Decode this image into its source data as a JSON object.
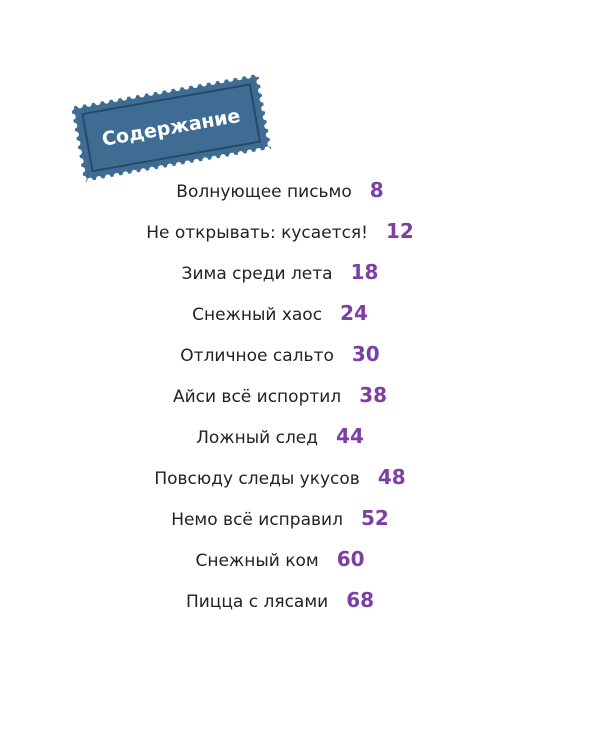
{
  "header": {
    "title": "Содержание"
  },
  "toc": {
    "entries": [
      {
        "title": "Волнующее письмо",
        "page": "8"
      },
      {
        "title": "Не открывать: кусается!",
        "page": "12"
      },
      {
        "title": "Зима среди лета",
        "page": "18"
      },
      {
        "title": "Снежный хаос",
        "page": "24"
      },
      {
        "title": "Отличное сальто",
        "page": "30"
      },
      {
        "title": "Айси всё испортил",
        "page": "38"
      },
      {
        "title": "Ложный след",
        "page": "44"
      },
      {
        "title": "Повсюду следы укусов",
        "page": "48"
      },
      {
        "title": "Немо всё исправил",
        "page": "52"
      },
      {
        "title": "Снежный ком",
        "page": "60"
      },
      {
        "title": "Пицца с лясами",
        "page": "68"
      }
    ]
  }
}
